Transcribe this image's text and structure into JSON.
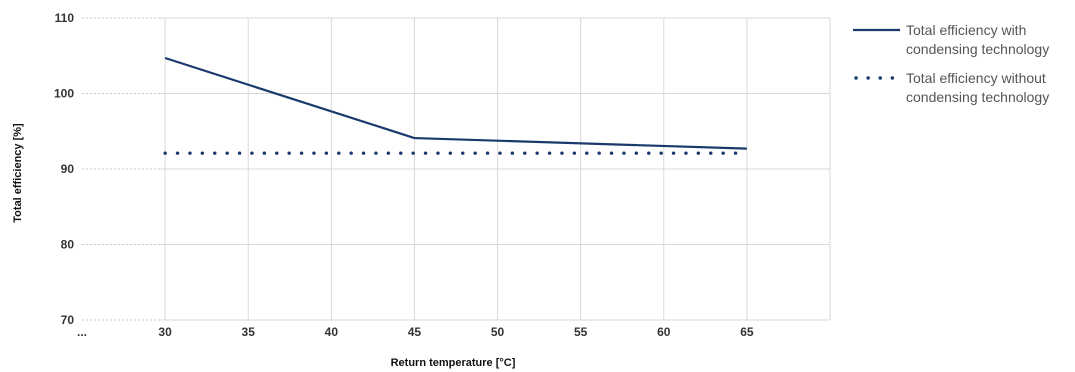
{
  "chart_data": {
    "type": "line",
    "xlabel": "Return temperature [°C]",
    "ylabel": "Total efficiency [%]",
    "x_ticks": [
      "30",
      "35",
      "40",
      "45",
      "50",
      "55",
      "60",
      "65"
    ],
    "x_origin_label": "...",
    "y_ticks": [
      "70",
      "80",
      "90",
      "100",
      "110"
    ],
    "xlim": [
      25,
      70
    ],
    "ylim": [
      70,
      110
    ],
    "grid": true,
    "legend_position": "right",
    "series": [
      {
        "name_lines": [
          "Total efficiency with",
          "condensing technology"
        ],
        "style": "solid",
        "color": "#1a3a6e",
        "x": [
          30,
          45,
          65
        ],
        "y": [
          104.7,
          94.1,
          92.7
        ]
      },
      {
        "name_lines": [
          "Total efficiency without",
          "condensing technology"
        ],
        "style": "dotted",
        "color": "#1a3a6e",
        "x": [
          30,
          65
        ],
        "y": [
          92.1,
          92.1
        ]
      }
    ]
  }
}
